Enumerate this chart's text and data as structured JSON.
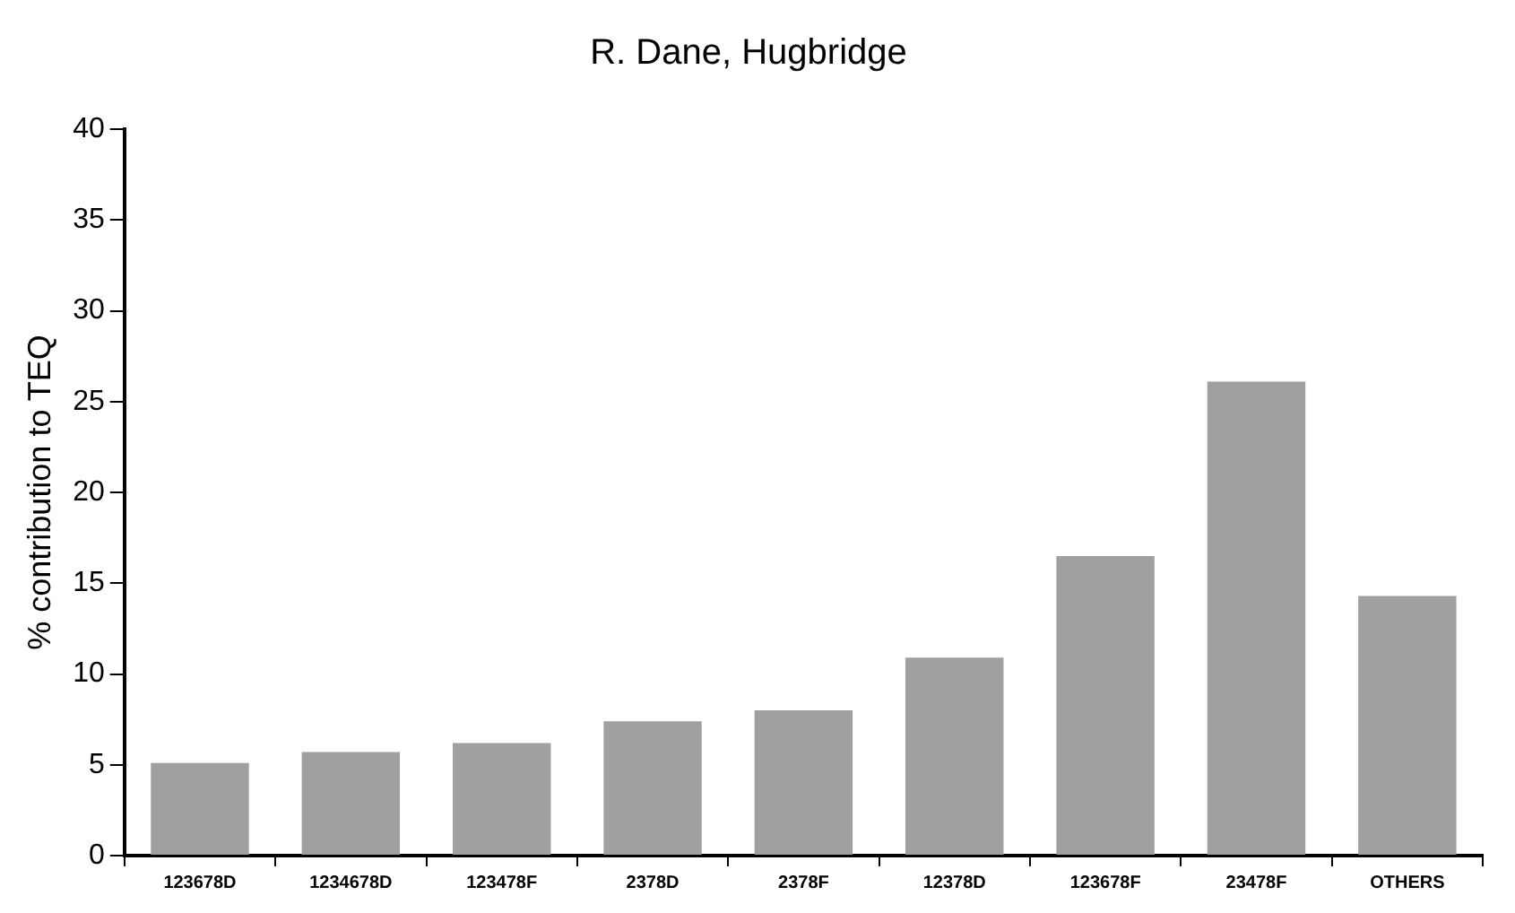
{
  "chart_data": {
    "type": "bar",
    "title": "R. Dane, Hugbridge",
    "ylabel": "% contribution to TEQ",
    "categories": [
      "123678D",
      "1234678D",
      "123478F",
      "2378D",
      "2378F",
      "12378D",
      "123678F",
      "23478F",
      "OTHERS"
    ],
    "values": [
      5.1,
      5.7,
      6.2,
      7.4,
      8,
      10.9,
      16.5,
      26.1,
      14.3
    ],
    "color": "#a0a0a0",
    "ylim": [
      0,
      40
    ],
    "yticks": [
      0,
      5,
      10,
      15,
      20,
      25,
      30,
      35,
      40
    ],
    "grid": false,
    "legend": false
  }
}
